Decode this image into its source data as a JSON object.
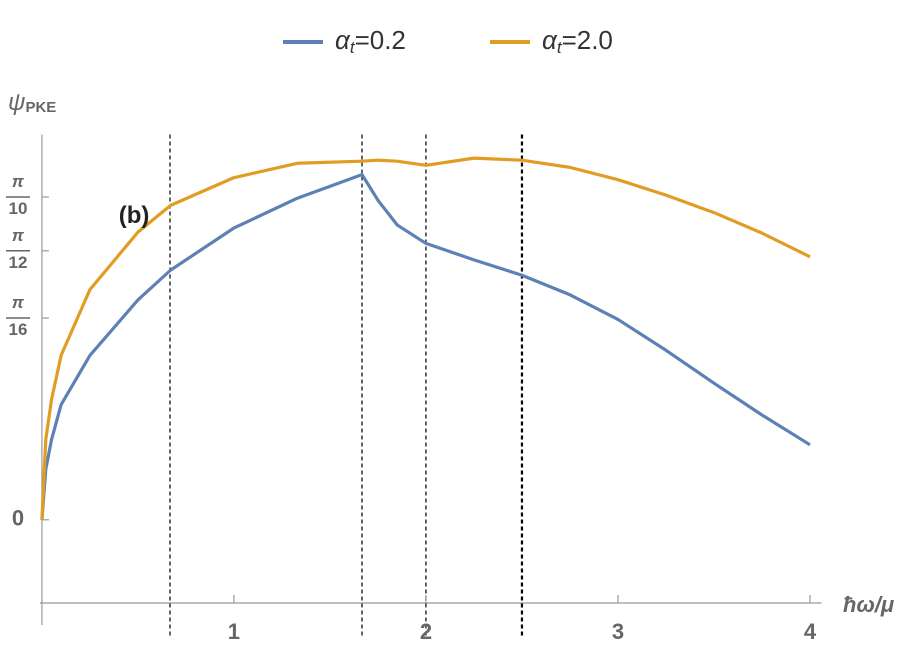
{
  "chart_data": {
    "type": "line",
    "xlabel": "ħω/μ",
    "ylabel": "ψPKE",
    "x": [
      0,
      0.02,
      0.05,
      0.1,
      0.25,
      0.5,
      0.67,
      1.0,
      1.33,
      1.667,
      1.75,
      1.85,
      2.0,
      2.25,
      2.5,
      2.75,
      3.0,
      3.25,
      3.5,
      3.75,
      4.0
    ],
    "series": [
      {
        "name": "αt=0.2",
        "color": "#5e81b5",
        "values": [
          0,
          0.049,
          0.078,
          0.112,
          0.16,
          0.214,
          0.243,
          0.284,
          0.313,
          0.336,
          0.311,
          0.287,
          0.269,
          0.253,
          0.238,
          0.219,
          0.195,
          0.165,
          0.133,
          0.102,
          0.073
        ]
      },
      {
        "name": "αt=2.0",
        "color": "#e19c24",
        "values": [
          0,
          0.078,
          0.117,
          0.16,
          0.224,
          0.28,
          0.306,
          0.333,
          0.347,
          0.349,
          0.35,
          0.349,
          0.345,
          0.352,
          0.35,
          0.343,
          0.331,
          0.316,
          0.299,
          0.279,
          0.256
        ]
      }
    ],
    "xlim": [
      -0.01,
      4.06
    ],
    "ylim": [
      -0.08,
      0.375
    ],
    "xticks": [
      1,
      2,
      3,
      4
    ],
    "yticks": [
      0,
      {
        "value": 0.19635,
        "label": "π/16"
      },
      {
        "value": 0.2618,
        "label": "π/12"
      },
      {
        "value": 0.31416,
        "label": "π/10"
      }
    ],
    "vlines": [
      0.667,
      1.667,
      2.0,
      2.5
    ],
    "annotations": [
      {
        "text": "(b)",
        "x": 0.48,
        "y": 0.295
      }
    ],
    "legend": "top"
  }
}
